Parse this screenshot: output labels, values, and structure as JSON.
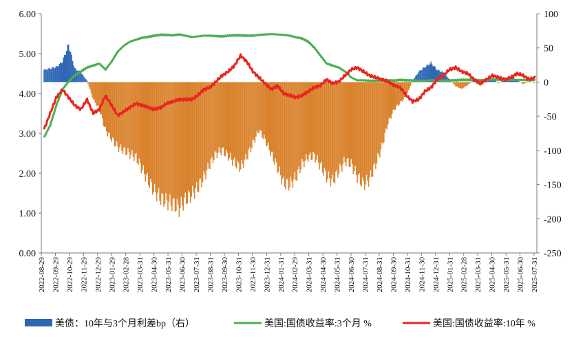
{
  "chart_data": {
    "type": "bar",
    "left_axis": {
      "ticks": [
        "6.00",
        "5.00",
        "4.00",
        "3.00",
        "2.00",
        "1.00",
        "0.00"
      ],
      "ylim": [
        0,
        6
      ],
      "unit": "%"
    },
    "right_axis": {
      "ticks": [
        "100",
        "50",
        "0",
        "-50",
        "-100",
        "-150",
        "-200",
        "-250"
      ],
      "ylim": [
        -250,
        100
      ],
      "unit": "bp"
    },
    "x_ticks": [
      "2022-08-29",
      "2022-09-29",
      "2022-10-29",
      "2022-11-29",
      "2022-12-29",
      "2023-01-29",
      "2023-02-28",
      "2023-03-31",
      "2023-04-30",
      "2023-05-31",
      "2023-06-30",
      "2023-07-31",
      "2023-08-31",
      "2023-09-30",
      "2023-10-31",
      "2023-11-30",
      "2023-12-31",
      "2024-01-31",
      "2024-02-29",
      "2024-03-31",
      "2024-04-30",
      "2024-05-31",
      "2024-06-30",
      "2024-07-31",
      "2024-08-31",
      "2024-09-30",
      "2024-10-31",
      "2024-11-30",
      "2024-12-31",
      "2025-01-31",
      "2025-02-28",
      "2025-03-31",
      "2025-04-30",
      "2025-05-31",
      "2025-06-30",
      "2025-07-31"
    ],
    "grid": false,
    "legend_position": "bottom",
    "series": [
      {
        "name": "美债：10年与3个月利差bp（右）",
        "type": "bar",
        "axis": "right",
        "color": "#2e67b5",
        "neg_color": "#d9822b",
        "values": [
          18,
          20,
          22,
          30,
          55,
          20,
          14,
          2,
          -25,
          -40,
          -70,
          -83,
          -95,
          -100,
          -105,
          -110,
          -128,
          -145,
          -160,
          -170,
          -175,
          -178,
          -185,
          -172,
          -165,
          -155,
          -140,
          -120,
          -105,
          -100,
          -108,
          -118,
          -125,
          -110,
          -90,
          -70,
          -85,
          -105,
          -125,
          -148,
          -150,
          -140,
          -120,
          -110,
          -108,
          -122,
          -138,
          -145,
          -130,
          -115,
          -120,
          -138,
          -150,
          -142,
          -120,
          -95,
          -60,
          -40,
          -30,
          -20,
          2,
          15,
          22,
          28,
          18,
          14,
          4,
          -6,
          -10,
          -4,
          3,
          -6,
          2,
          6,
          -2,
          5,
          8,
          3,
          -3,
          1,
          -2
        ]
      },
      {
        "name": "美国:国债收益率:3个月 %",
        "type": "line",
        "axis": "left",
        "color": "#4caf50",
        "values": [
          2.9,
          3.2,
          3.7,
          4.1,
          4.3,
          4.45,
          4.55,
          4.65,
          4.7,
          4.75,
          4.6,
          4.8,
          5.05,
          5.2,
          5.3,
          5.35,
          5.4,
          5.42,
          5.45,
          5.47,
          5.47,
          5.46,
          5.48,
          5.45,
          5.42,
          5.43,
          5.45,
          5.45,
          5.44,
          5.43,
          5.45,
          5.46,
          5.46,
          5.45,
          5.45,
          5.47,
          5.48,
          5.49,
          5.48,
          5.47,
          5.45,
          5.41,
          5.38,
          5.3,
          5.15,
          4.95,
          4.75,
          4.7,
          4.65,
          4.55,
          4.4,
          4.33,
          4.33,
          4.32,
          4.32,
          4.33,
          4.33,
          4.32,
          4.34,
          4.33,
          4.33,
          4.32,
          4.32,
          4.33,
          4.33,
          4.32,
          4.33,
          4.33,
          4.34,
          4.34,
          4.34,
          4.33,
          4.34,
          4.35,
          4.34,
          4.33,
          4.34,
          4.34,
          4.34,
          4.33,
          4.34
        ]
      },
      {
        "name": "美国:国债收益率:10年 %",
        "type": "line",
        "axis": "left",
        "color": "#e8251f",
        "values": [
          3.1,
          3.5,
          3.9,
          4.1,
          3.9,
          3.7,
          3.6,
          3.85,
          3.5,
          3.6,
          3.95,
          3.7,
          3.45,
          3.55,
          3.65,
          3.75,
          3.7,
          3.65,
          3.6,
          3.65,
          3.75,
          3.8,
          3.85,
          3.85,
          3.85,
          3.95,
          4.1,
          4.15,
          4.3,
          4.45,
          4.55,
          4.7,
          4.95,
          4.8,
          4.55,
          4.4,
          4.25,
          4.1,
          4.2,
          4.0,
          3.95,
          3.9,
          3.95,
          4.05,
          4.15,
          4.2,
          4.35,
          4.25,
          4.3,
          4.45,
          4.6,
          4.65,
          4.55,
          4.45,
          4.4,
          4.35,
          4.3,
          4.2,
          4.15,
          3.95,
          3.8,
          3.85,
          4.05,
          4.15,
          4.35,
          4.45,
          4.6,
          4.65,
          4.55,
          4.5,
          4.35,
          4.25,
          4.35,
          4.45,
          4.4,
          4.35,
          4.4,
          4.5,
          4.45,
          4.35,
          4.4
        ]
      }
    ]
  }
}
